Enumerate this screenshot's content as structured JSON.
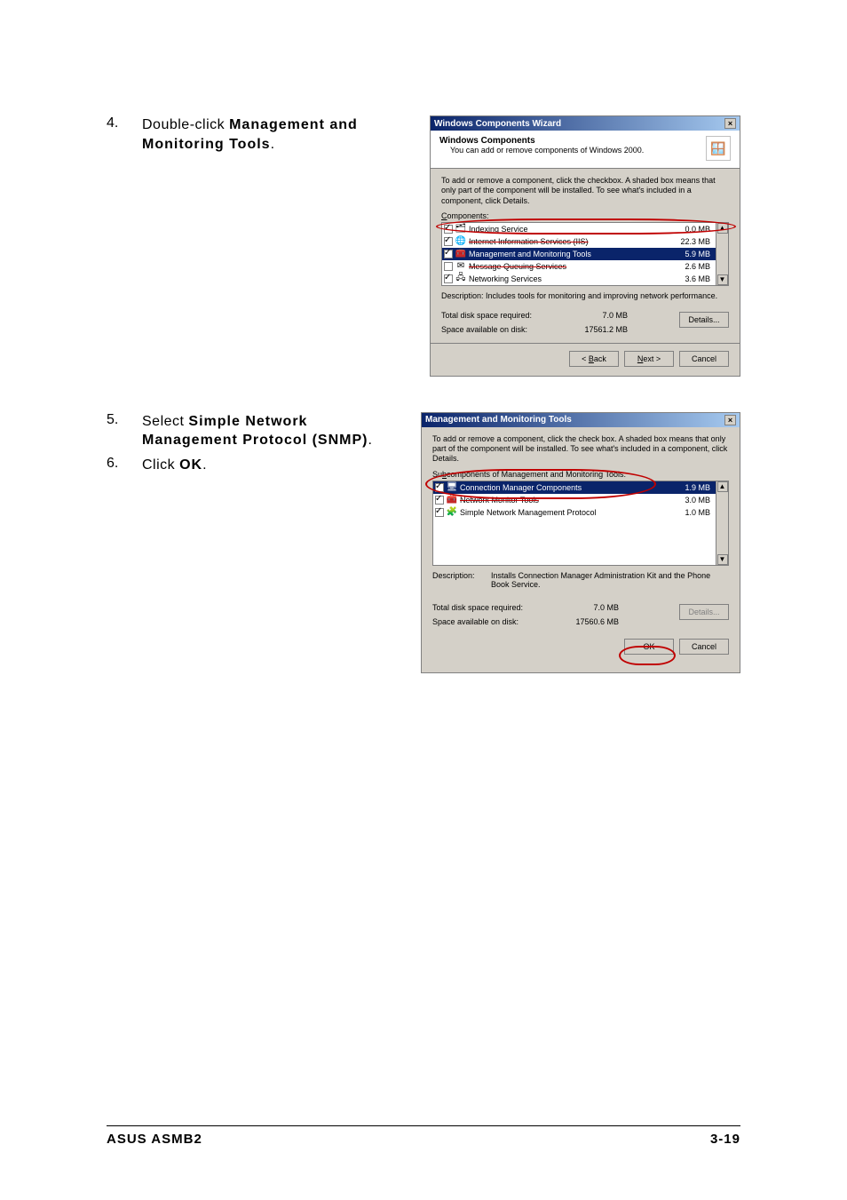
{
  "steps": {
    "s4": {
      "num": "4.",
      "before": "Double-click ",
      "bold": "Management and Monitoring Tools",
      "after": "."
    },
    "s5": {
      "num": "5.",
      "before": "Select ",
      "bold": "Simple Network Management Protocol (SNMP)",
      "after": "."
    },
    "s6": {
      "num": "6.",
      "before": "Click ",
      "bold": "OK",
      "after": "."
    }
  },
  "dlg1": {
    "title": "Windows Components Wizard",
    "header_title": "Windows Components",
    "header_sub": "You can add or remove components of Windows 2000.",
    "intro": "To add or remove a component, click the checkbox.  A shaded box means that only part of the component will be installed.  To see what's included in a component, click Details.",
    "components_label": "Components:",
    "rows": [
      {
        "checked": true,
        "icon": "🗂",
        "name": "Indexing Service",
        "size": "0.0 MB",
        "sel": false,
        "strike": false
      },
      {
        "checked": true,
        "icon": "🌐",
        "name": "Internet Information Services (IIS)",
        "size": "22.3 MB",
        "sel": false,
        "strike": true
      },
      {
        "checked": true,
        "icon": "🧰",
        "name": "Management and Monitoring Tools",
        "size": "5.9 MB",
        "sel": true,
        "strike": false
      },
      {
        "checked": false,
        "icon": "✉",
        "name": "Message Queuing Services",
        "size": "2.6 MB",
        "sel": false,
        "strike": true
      },
      {
        "checked": true,
        "icon": "🖧",
        "name": "Networking Services",
        "size": "3.6 MB",
        "sel": false,
        "strike": false
      }
    ],
    "desc_label": "Description:",
    "desc": "Includes tools for monitoring and improving network performance.",
    "req_label": "Total disk space required:",
    "req_val": "7.0 MB",
    "avail_label": "Space available on disk:",
    "avail_val": "17561.2 MB",
    "btn_details": "Details...",
    "btn_back": "< Back",
    "btn_next": "Next >",
    "btn_cancel": "Cancel"
  },
  "dlg2": {
    "title": "Management and Monitoring Tools",
    "intro": "To add or remove a component, click the check box. A shaded box means that only part of the component will be installed. To see what's included in a component, click Details.",
    "sub_label": "Subcomponents of Management and Monitoring Tools:",
    "rows": [
      {
        "checked": true,
        "icon": "🖥",
        "name": "Connection Manager Components",
        "size": "1.9 MB",
        "sel": true,
        "strike": false
      },
      {
        "checked": true,
        "icon": "🧰",
        "name": "Network Monitor Tools",
        "size": "3.0 MB",
        "sel": false,
        "strike": true
      },
      {
        "checked": true,
        "icon": "🧩",
        "name": "Simple Network Management Protocol",
        "size": "1.0 MB",
        "sel": false,
        "strike": false
      }
    ],
    "desc_label": "Description:",
    "desc": "Installs Connection Manager Administration Kit and the Phone Book Service.",
    "req_label": "Total disk space required:",
    "req_val": "7.0 MB",
    "avail_label": "Space available on disk:",
    "avail_val": "17560.6 MB",
    "btn_details": "Details...",
    "btn_ok": "OK",
    "btn_cancel": "Cancel"
  },
  "footer": {
    "left": "ASUS ASMB2",
    "right": "3-19"
  },
  "colors": {
    "highlight_ring": "#c00000",
    "titlebar_start": "#0a246a",
    "titlebar_end": "#a6caf0",
    "dialog_bg": "#d4d0c8"
  }
}
